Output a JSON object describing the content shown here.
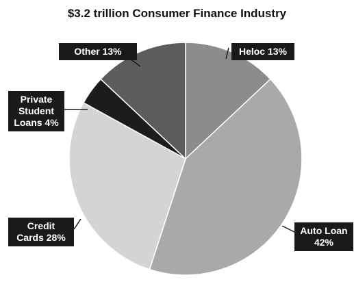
{
  "chart_data": {
    "type": "pie",
    "title": "$3.2 trillion Consumer Finance Industry",
    "categories": [
      "Heloc",
      "Auto Loan",
      "Credit Cards",
      "Private Student Loans",
      "Other"
    ],
    "values": [
      13,
      42,
      28,
      4,
      13
    ],
    "value_labels": [
      "13%",
      "42%",
      "28%",
      "4%",
      "13%"
    ],
    "colors": [
      "#8c8c8c",
      "#a9a9a9",
      "#d4d4d4",
      "#1c1c1c",
      "#5c5c5c"
    ]
  }
}
